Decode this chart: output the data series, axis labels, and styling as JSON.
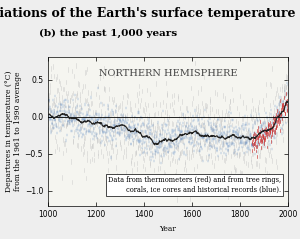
{
  "title": "Variations of the Earth's surface temperature for:",
  "subtitle": "(b) the past 1,000 years",
  "panel_label": "NORTHERN HEMISPHERE",
  "xlabel": "Year",
  "ylabel": "Departures in temperature (°C)\nfrom the 1961 to 1990 average",
  "legend_text": "Data from thermometers (red) and from tree rings,\ncorals, ice cores and historical records (blue).",
  "xlim": [
    1000,
    2000
  ],
  "ylim": [
    -1.2,
    0.8
  ],
  "yticks": [
    -1.0,
    -0.5,
    0.0,
    0.5
  ],
  "xticks": [
    1000,
    1200,
    1400,
    1600,
    1800,
    2000
  ],
  "hline_y": 0.0,
  "gray_color": "#c0c0c0",
  "blue_color": "#4477bb",
  "red_color": "#cc3333",
  "black_color": "#222222",
  "background_color": "#f5f5f0",
  "title_fontsize": 9,
  "subtitle_fontsize": 7.5,
  "panel_fontsize": 7,
  "label_fontsize": 5.5,
  "tick_fontsize": 5.5,
  "legend_fontsize": 4.8,
  "seed": 42
}
